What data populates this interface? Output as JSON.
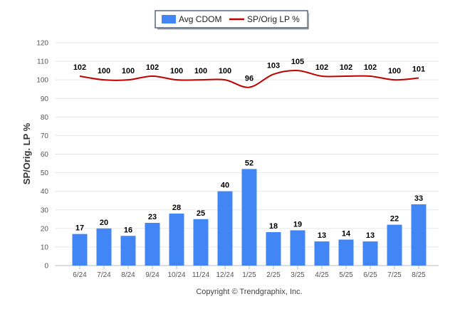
{
  "chart_data": {
    "type": "bar",
    "categories": [
      "6/24",
      "7/24",
      "8/24",
      "9/24",
      "10/24",
      "11/24",
      "12/24",
      "1/25",
      "2/25",
      "3/25",
      "4/25",
      "5/25",
      "6/25",
      "7/25",
      "8/25"
    ],
    "series": [
      {
        "name": "Avg CDOM",
        "type": "bar",
        "color": "#4285f4",
        "values": [
          17,
          20,
          16,
          23,
          28,
          25,
          40,
          52,
          18,
          19,
          13,
          14,
          13,
          22,
          33
        ]
      },
      {
        "name": "SP/Orig LP %",
        "type": "line",
        "color": "#c00000",
        "values": [
          102,
          100,
          100,
          102,
          100,
          100,
          100,
          96,
          103,
          105,
          102,
          102,
          102,
          100,
          101
        ]
      }
    ],
    "ylabel": "SP/Orig. LP %",
    "ylim": [
      0,
      120
    ],
    "yticks": [
      0,
      10,
      20,
      30,
      40,
      50,
      60,
      70,
      80,
      90,
      100,
      110,
      120
    ],
    "grid": true,
    "legend_position": "top-center"
  },
  "footer": {
    "copyright": "Copyright © Trendgraphix, Inc."
  }
}
